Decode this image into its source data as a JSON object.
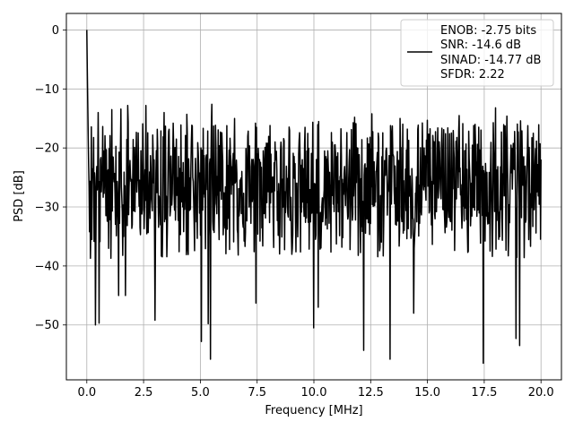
{
  "chart_data": {
    "type": "line",
    "xlabel": "Frequency [MHz]",
    "ylabel": "PSD [dB]",
    "xlim": [
      -0.9,
      20.9
    ],
    "ylim": [
      -59.3,
      2.8
    ],
    "x_ticks": [
      0.0,
      2.5,
      5.0,
      7.5,
      10.0,
      12.5,
      15.0,
      17.5,
      20.0
    ],
    "x_tick_labels": [
      "0.0",
      "2.5",
      "5.0",
      "7.5",
      "10.0",
      "12.5",
      "15.0",
      "17.5",
      "20.0"
    ],
    "y_ticks": [
      0,
      -10,
      -20,
      -30,
      -40,
      -50
    ],
    "y_tick_labels": [
      "0",
      "−10",
      "−20",
      "−30",
      "−40",
      "−50"
    ],
    "grid": true,
    "legend_position": "top-right",
    "series_color": "#000000",
    "legend": {
      "lines": [
        "ENOB: -2.75 bits",
        "SNR: -14.6 dB",
        "SINAD: -14.77 dB",
        "SFDR: 2.22"
      ]
    },
    "series": [
      {
        "x_range": [
          0.0,
          20.0
        ],
        "points": 1000,
        "initial_values": [
          0.0,
          -6.5,
          -12.0,
          -17.5,
          -22.8,
          -26.5,
          -34.2
        ],
        "band_mean": -26.5,
        "band_upper": -15.5,
        "band_lower": -36.5,
        "deep_minima": [
          [
            0.38,
            -50.0
          ],
          [
            0.55,
            -49.7
          ],
          [
            1.4,
            -45.0
          ],
          [
            1.7,
            -45.0
          ],
          [
            3.0,
            -49.2
          ],
          [
            5.05,
            -52.8
          ],
          [
            5.35,
            -49.8
          ],
          [
            5.45,
            -55.8
          ],
          [
            9.98,
            -50.5
          ],
          [
            12.2,
            -54.3
          ],
          [
            13.35,
            -55.8
          ],
          [
            17.45,
            -56.5
          ],
          [
            18.9,
            -52.3
          ],
          [
            19.05,
            -53.5
          ],
          [
            10.2,
            -47.0
          ],
          [
            14.4,
            -48.0
          ],
          [
            7.45,
            -46.3
          ]
        ],
        "peaks": [
          [
            0.5,
            -14.0
          ],
          [
            1.1,
            -13.5
          ],
          [
            1.5,
            -13.4
          ],
          [
            1.8,
            -12.8
          ],
          [
            2.6,
            -12.8
          ],
          [
            3.4,
            -14.0
          ],
          [
            4.4,
            -14.3
          ],
          [
            5.5,
            -12.6
          ],
          [
            6.5,
            -15.0
          ],
          [
            9.6,
            -16.5
          ],
          [
            11.8,
            -14.8
          ],
          [
            12.55,
            -14.2
          ],
          [
            13.8,
            -15.0
          ],
          [
            15.0,
            -15.3
          ],
          [
            16.4,
            -14.5
          ],
          [
            17.1,
            -16.0
          ],
          [
            18.0,
            -13.2
          ],
          [
            18.5,
            -14.6
          ],
          [
            19.1,
            -15.4
          ],
          [
            19.95,
            -19.3
          ]
        ]
      }
    ]
  }
}
